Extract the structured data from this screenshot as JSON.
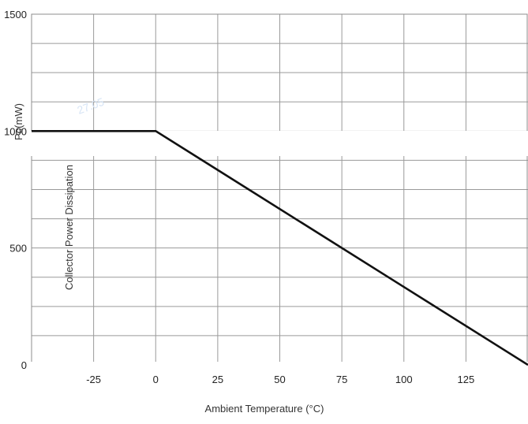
{
  "chart_data": {
    "type": "line",
    "ylabel": "Collector Power Dissipation",
    "unit_label": "Pc(mW)",
    "xlabel": "Ambient Temperature (°C)",
    "x_tick_labels": [
      "-25",
      "0",
      "25",
      "50",
      "75",
      "100",
      "125"
    ],
    "y_tick_labels": [
      "0",
      "500",
      "1000",
      "1500"
    ],
    "xlim": [
      -50,
      150
    ],
    "ylim": [
      0,
      1500
    ],
    "grid": true,
    "series": [
      {
        "values": [
          {
            "x": -50,
            "y": 1000
          },
          {
            "x": 0,
            "y": 1000
          },
          {
            "x": 150,
            "y": 0
          }
        ]
      }
    ],
    "watermark_text": "27.05",
    "colors": {
      "curve": "#111111",
      "grid": "#9a9a9a",
      "background": "#ffffff"
    }
  }
}
